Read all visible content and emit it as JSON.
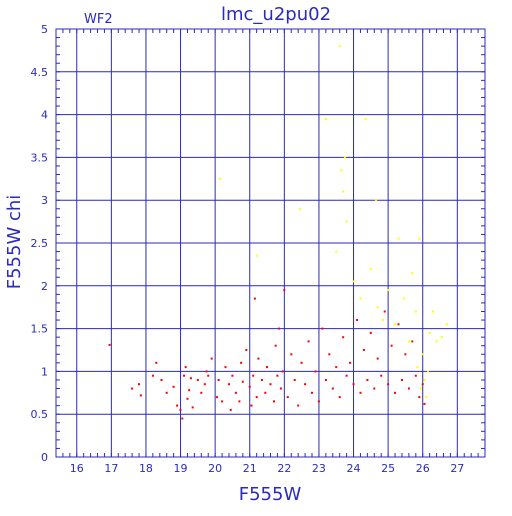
{
  "chart_data": {
    "type": "scatter",
    "title": "lmc_u2pu02",
    "subtitle": "WF2",
    "xlabel": "F555W",
    "ylabel": "F555W  chi",
    "xlim": [
      15.4,
      27.8
    ],
    "ylim": [
      0,
      5
    ],
    "xticks": [
      16,
      17,
      18,
      19,
      20,
      21,
      22,
      23,
      24,
      25,
      26,
      27
    ],
    "yticks": [
      0,
      0.5,
      1,
      1.5,
      2,
      2.5,
      3,
      3.5,
      4,
      4.5,
      5
    ],
    "ytick_labels": [
      "0",
      "0.5",
      "1",
      "1.5",
      "2",
      "2.5",
      "3",
      "3.5",
      "4",
      "4.5",
      "5"
    ],
    "grid": true,
    "series": [
      {
        "color": "#ff0000",
        "points": [
          [
            16.95,
            1.31
          ],
          [
            17.6,
            0.8
          ],
          [
            17.8,
            0.85
          ],
          [
            17.85,
            0.72
          ],
          [
            18.2,
            0.95
          ],
          [
            18.3,
            1.1
          ],
          [
            18.45,
            0.9
          ],
          [
            18.6,
            0.75
          ],
          [
            18.8,
            0.82
          ],
          [
            18.9,
            0.6
          ],
          [
            19.0,
            0.55
          ],
          [
            19.05,
            0.45
          ],
          [
            19.1,
            0.95
          ],
          [
            19.15,
            1.05
          ],
          [
            19.2,
            0.68
          ],
          [
            19.25,
            0.78
          ],
          [
            19.3,
            0.92
          ],
          [
            19.35,
            0.58
          ],
          [
            19.5,
            0.9
          ],
          [
            19.6,
            0.75
          ],
          [
            19.7,
            0.85
          ],
          [
            19.75,
            1.0
          ],
          [
            19.8,
            0.95
          ],
          [
            19.9,
            1.15
          ],
          [
            20.05,
            0.7
          ],
          [
            20.1,
            0.9
          ],
          [
            20.2,
            0.65
          ],
          [
            20.3,
            1.05
          ],
          [
            20.4,
            0.85
          ],
          [
            20.45,
            0.55
          ],
          [
            20.5,
            0.95
          ],
          [
            20.6,
            0.75
          ],
          [
            20.7,
            0.65
          ],
          [
            20.75,
            1.1
          ],
          [
            20.8,
            0.88
          ],
          [
            20.9,
            1.25
          ],
          [
            21.0,
            0.82
          ],
          [
            21.05,
            0.6
          ],
          [
            21.1,
            0.95
          ],
          [
            21.15,
            1.85
          ],
          [
            21.2,
            0.7
          ],
          [
            21.25,
            1.15
          ],
          [
            21.35,
            0.9
          ],
          [
            21.45,
            0.75
          ],
          [
            21.5,
            1.05
          ],
          [
            21.6,
            0.85
          ],
          [
            21.7,
            0.65
          ],
          [
            21.75,
            1.3
          ],
          [
            21.8,
            0.95
          ],
          [
            21.85,
            1.5
          ],
          [
            21.9,
            0.8
          ],
          [
            21.95,
            1.0
          ],
          [
            22.0,
            1.95
          ],
          [
            22.1,
            0.7
          ],
          [
            22.2,
            1.2
          ],
          [
            22.3,
            0.9
          ],
          [
            22.4,
            0.6
          ],
          [
            22.5,
            1.1
          ],
          [
            22.6,
            0.85
          ],
          [
            22.7,
            1.35
          ],
          [
            22.8,
            0.75
          ],
          [
            22.9,
            1.0
          ],
          [
            23.0,
            0.65
          ],
          [
            23.1,
            1.5
          ],
          [
            23.2,
            0.9
          ],
          [
            23.3,
            1.2
          ],
          [
            23.4,
            0.8
          ],
          [
            23.5,
            1.05
          ],
          [
            23.6,
            0.7
          ],
          [
            23.7,
            1.4
          ],
          [
            23.8,
            0.95
          ],
          [
            23.9,
            1.1
          ],
          [
            24.0,
            0.85
          ],
          [
            24.1,
            1.6
          ],
          [
            24.2,
            0.75
          ],
          [
            24.3,
            1.25
          ],
          [
            24.4,
            0.9
          ],
          [
            24.5,
            1.45
          ],
          [
            24.6,
            0.8
          ],
          [
            24.7,
            1.15
          ],
          [
            24.8,
            0.95
          ],
          [
            24.9,
            1.7
          ],
          [
            25.0,
            0.85
          ],
          [
            25.1,
            1.3
          ],
          [
            25.2,
            0.75
          ],
          [
            25.3,
            1.55
          ],
          [
            25.4,
            0.9
          ],
          [
            25.5,
            1.2
          ],
          [
            25.6,
            0.8
          ],
          [
            25.7,
            1.35
          ],
          [
            25.8,
            0.95
          ],
          [
            25.9,
            0.7
          ],
          [
            26.0,
            0.85
          ],
          [
            26.05,
            0.62
          ]
        ]
      },
      {
        "color": "#ffff00",
        "points": [
          [
            20.15,
            3.25
          ],
          [
            21.2,
            2.35
          ],
          [
            22.45,
            2.9
          ],
          [
            23.2,
            3.95
          ],
          [
            23.5,
            2.4
          ],
          [
            23.6,
            4.8
          ],
          [
            23.65,
            3.35
          ],
          [
            23.7,
            3.1
          ],
          [
            23.75,
            3.5
          ],
          [
            23.8,
            2.75
          ],
          [
            24.0,
            2.05
          ],
          [
            24.2,
            1.85
          ],
          [
            24.35,
            3.95
          ],
          [
            24.5,
            2.2
          ],
          [
            24.65,
            3.0
          ],
          [
            24.7,
            1.75
          ],
          [
            24.85,
            1.6
          ],
          [
            25.0,
            1.95
          ],
          [
            25.2,
            1.55
          ],
          [
            25.3,
            2.55
          ],
          [
            25.45,
            1.85
          ],
          [
            25.6,
            1.35
          ],
          [
            25.7,
            2.15
          ],
          [
            25.8,
            1.7
          ],
          [
            25.85,
            1.05
          ],
          [
            25.9,
            2.55
          ],
          [
            26.0,
            1.2
          ],
          [
            26.05,
            0.9
          ],
          [
            26.15,
            1.0
          ],
          [
            26.2,
            1.45
          ],
          [
            26.3,
            1.7
          ],
          [
            26.4,
            1.35
          ],
          [
            26.55,
            1.4
          ],
          [
            26.7,
            1.55
          ],
          [
            26.1,
            0.7
          ],
          [
            25.95,
            0.8
          ]
        ]
      }
    ]
  }
}
